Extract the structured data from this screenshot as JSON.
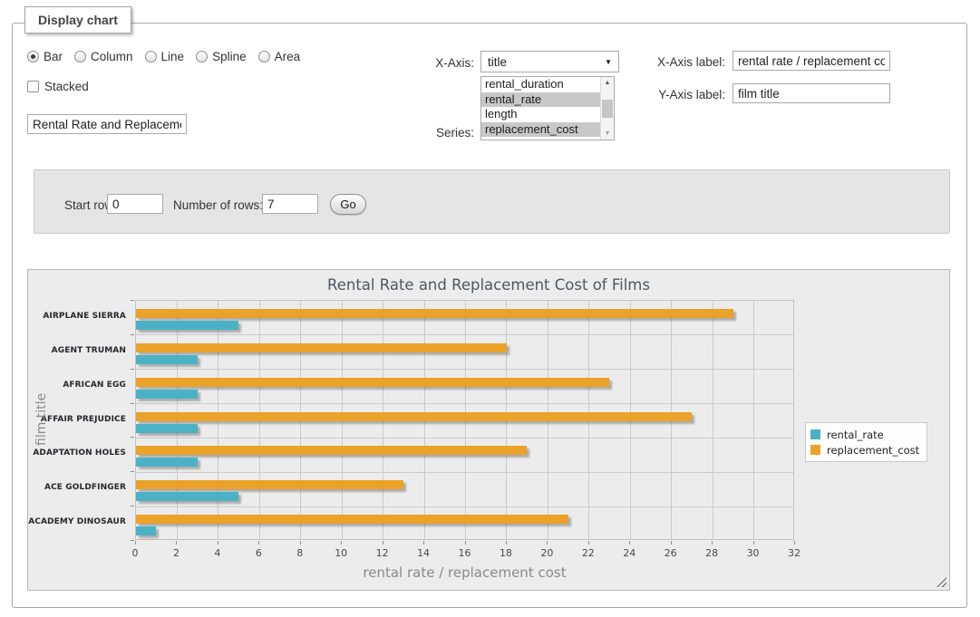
{
  "page": {
    "legend_title": "Display chart"
  },
  "controls": {
    "chart_types": [
      {
        "label": "Bar",
        "selected": true
      },
      {
        "label": "Column",
        "selected": false
      },
      {
        "label": "Line",
        "selected": false
      },
      {
        "label": "Spline",
        "selected": false
      },
      {
        "label": "Area",
        "selected": false
      }
    ],
    "stacked": {
      "label": "Stacked",
      "checked": false
    },
    "chart_title_input": {
      "value": "Rental Rate and Replacemer"
    },
    "x_axis": {
      "label": "X-Axis:",
      "value": "title"
    },
    "series_select": {
      "label": "Series:",
      "options": [
        {
          "label": "rental_duration",
          "selected": false
        },
        {
          "label": "rental_rate",
          "selected": true
        },
        {
          "label": "length",
          "selected": false
        },
        {
          "label": "replacement_cost",
          "selected": true
        }
      ]
    },
    "x_axis_label": {
      "label": "X-Axis label:",
      "value": "rental rate / replacement cost"
    },
    "y_axis_label": {
      "label": "Y-Axis label:",
      "value": "film title"
    }
  },
  "row_controls": {
    "start_row_label": "Start row:",
    "start_row_value": "0",
    "num_rows_label": "Number of rows:",
    "num_rows_value": "7",
    "go_label": "Go"
  },
  "icons": {
    "select_arrow": "▼",
    "scroll_up": "▲",
    "scroll_down": "▼"
  },
  "chart_data": {
    "type": "bar",
    "orientation": "horizontal",
    "title": "Rental Rate and Replacement Cost of Films",
    "categories": [
      "AIRPLANE SIERRA",
      "AGENT TRUMAN",
      "AFRICAN EGG",
      "AFFAIR PREJUDICE",
      "ADAPTATION HOLES",
      "ACE GOLDFINGER",
      "ACADEMY DINOSAUR"
    ],
    "series": [
      {
        "name": "rental_rate",
        "color": "#4bb2c5",
        "values": [
          4.99,
          2.99,
          2.99,
          2.99,
          2.99,
          4.99,
          0.99
        ]
      },
      {
        "name": "replacement_cost",
        "color": "#eaa228",
        "values": [
          28.99,
          17.99,
          22.99,
          26.99,
          18.99,
          12.99,
          20.99
        ]
      }
    ],
    "xlabel": "rental rate / replacement cost",
    "ylabel": "film title",
    "xlim": [
      0,
      32
    ],
    "xticks": [
      0,
      2,
      4,
      6,
      8,
      10,
      12,
      14,
      16,
      18,
      20,
      22,
      24,
      26,
      28,
      30,
      32
    ],
    "grid": true,
    "legend_position": "outside-right"
  }
}
